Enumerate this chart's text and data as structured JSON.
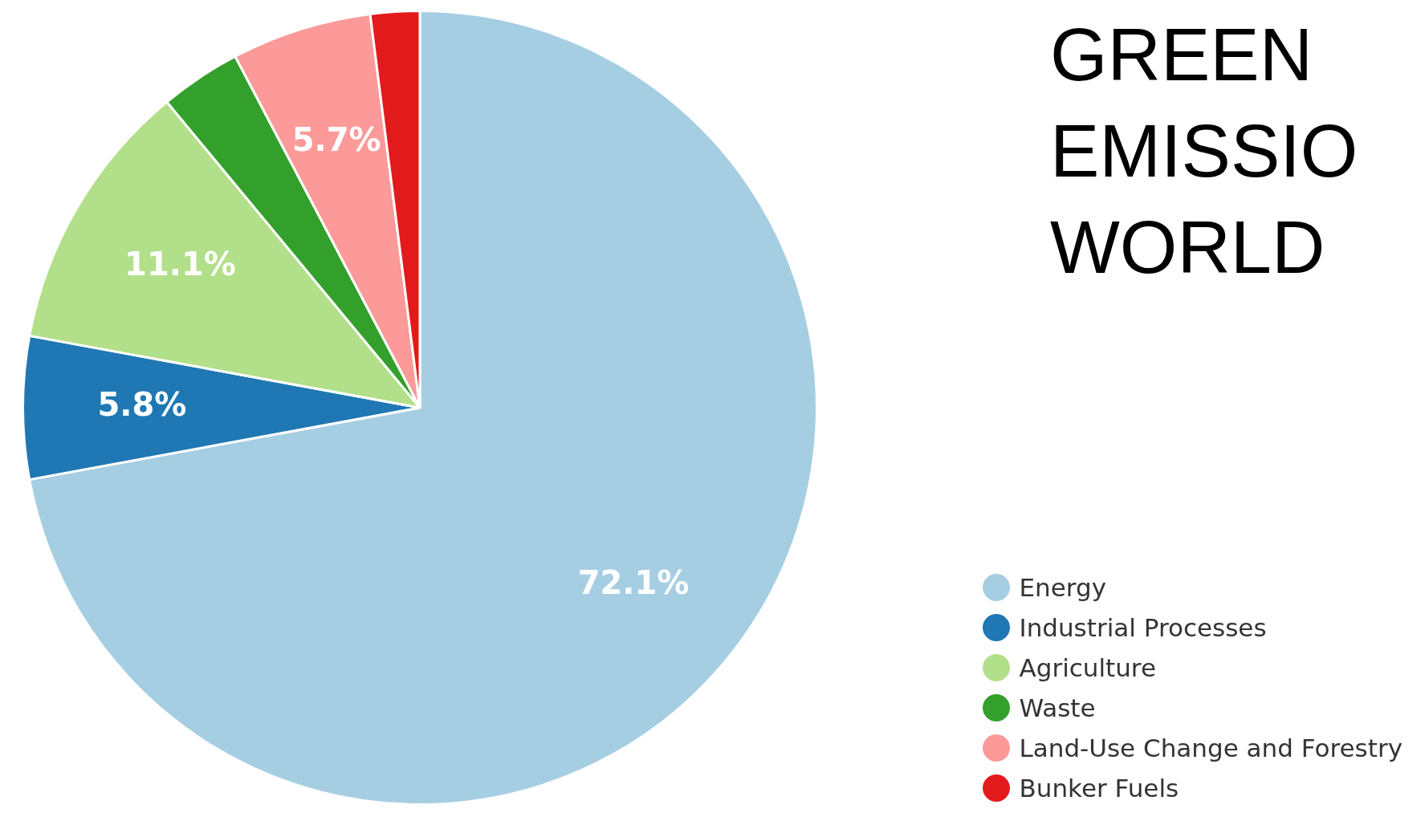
{
  "chart_data": {
    "type": "pie",
    "title": "GREEN\nEMISSIO\nWORLD",
    "categories": [
      "Energy",
      "Industrial Processes",
      "Agriculture",
      "Waste",
      "Land-Use Change and Forestry",
      "Bunker Fuels"
    ],
    "values": [
      72.1,
      5.8,
      11.1,
      3.3,
      5.7,
      2.0
    ],
    "colors": [
      "#a6cee3",
      "#1f78b4",
      "#b2df8a",
      "#33a02c",
      "#fb9a99",
      "#e31a1c"
    ],
    "value_labels": [
      "72.1%",
      "5.8%",
      "11.1%",
      null,
      "5.7%",
      null
    ],
    "legend": "bottom right"
  }
}
